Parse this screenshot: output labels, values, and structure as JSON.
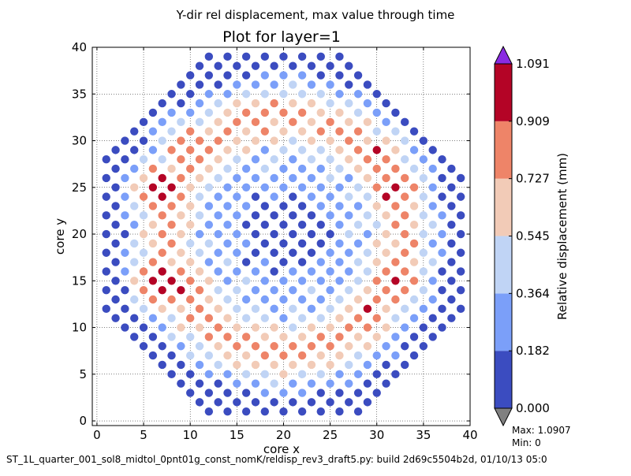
{
  "chart_data": {
    "type": "scatter",
    "suptitle": "Y-dir rel displacement, max value through time",
    "title": "Plot for layer=1",
    "xlabel": "core x",
    "ylabel": "core y",
    "xlim": [
      -0.5,
      40
    ],
    "ylim": [
      -0.5,
      40
    ],
    "xticks": [
      0,
      5,
      10,
      15,
      20,
      25,
      30,
      35,
      40
    ],
    "yticks": [
      0,
      5,
      10,
      15,
      20,
      25,
      30,
      35,
      40
    ],
    "grid": true,
    "colorbar": {
      "label": "Relative displacement (mm)",
      "levels": [
        0.0,
        0.182,
        0.364,
        0.545,
        0.727,
        0.909,
        1.091
      ],
      "tick_labels": [
        "0.000",
        "0.182",
        "0.364",
        "0.545",
        "0.727",
        "0.909",
        "1.091"
      ],
      "colors": [
        "#3b4cc0",
        "#7b9ff9",
        "#c0d4f5",
        "#f2cbb7",
        "#ee8468",
        "#b40426"
      ],
      "under_color": "#808080",
      "over_color": "#8a2be2"
    },
    "grid_points": {
      "pattern": "points at (x, y) with x + y odd, 1 <= x, y <= 39, x + y in [12, 66], |x - y| <= 27",
      "x_range": [
        1,
        39
      ],
      "y_range": [
        1,
        39
      ]
    },
    "hotspots": [
      {
        "x": 7,
        "y": 15,
        "peak": 1.09
      },
      {
        "x": 9,
        "y": 14,
        "peak": 1.0
      },
      {
        "x": 7,
        "y": 25,
        "peak": 1.05
      },
      {
        "x": 10,
        "y": 29,
        "peak": 0.95
      },
      {
        "x": 32,
        "y": 15,
        "peak": 1.0
      },
      {
        "x": 29,
        "y": 11,
        "peak": 0.95
      },
      {
        "x": 32,
        "y": 25,
        "peak": 1.0
      },
      {
        "x": 30,
        "y": 28,
        "peak": 0.95
      }
    ],
    "max_label": "Max: 1.0907",
    "min_label": "Min: 0"
  },
  "footer": {
    "caption": "ST_1L_quarter_001_sol8_midtol_0pnt01g_const_nomK/reldisp_rev3_draft5.py: build 2d69c5504b2d, 01/10/13 05:0"
  }
}
